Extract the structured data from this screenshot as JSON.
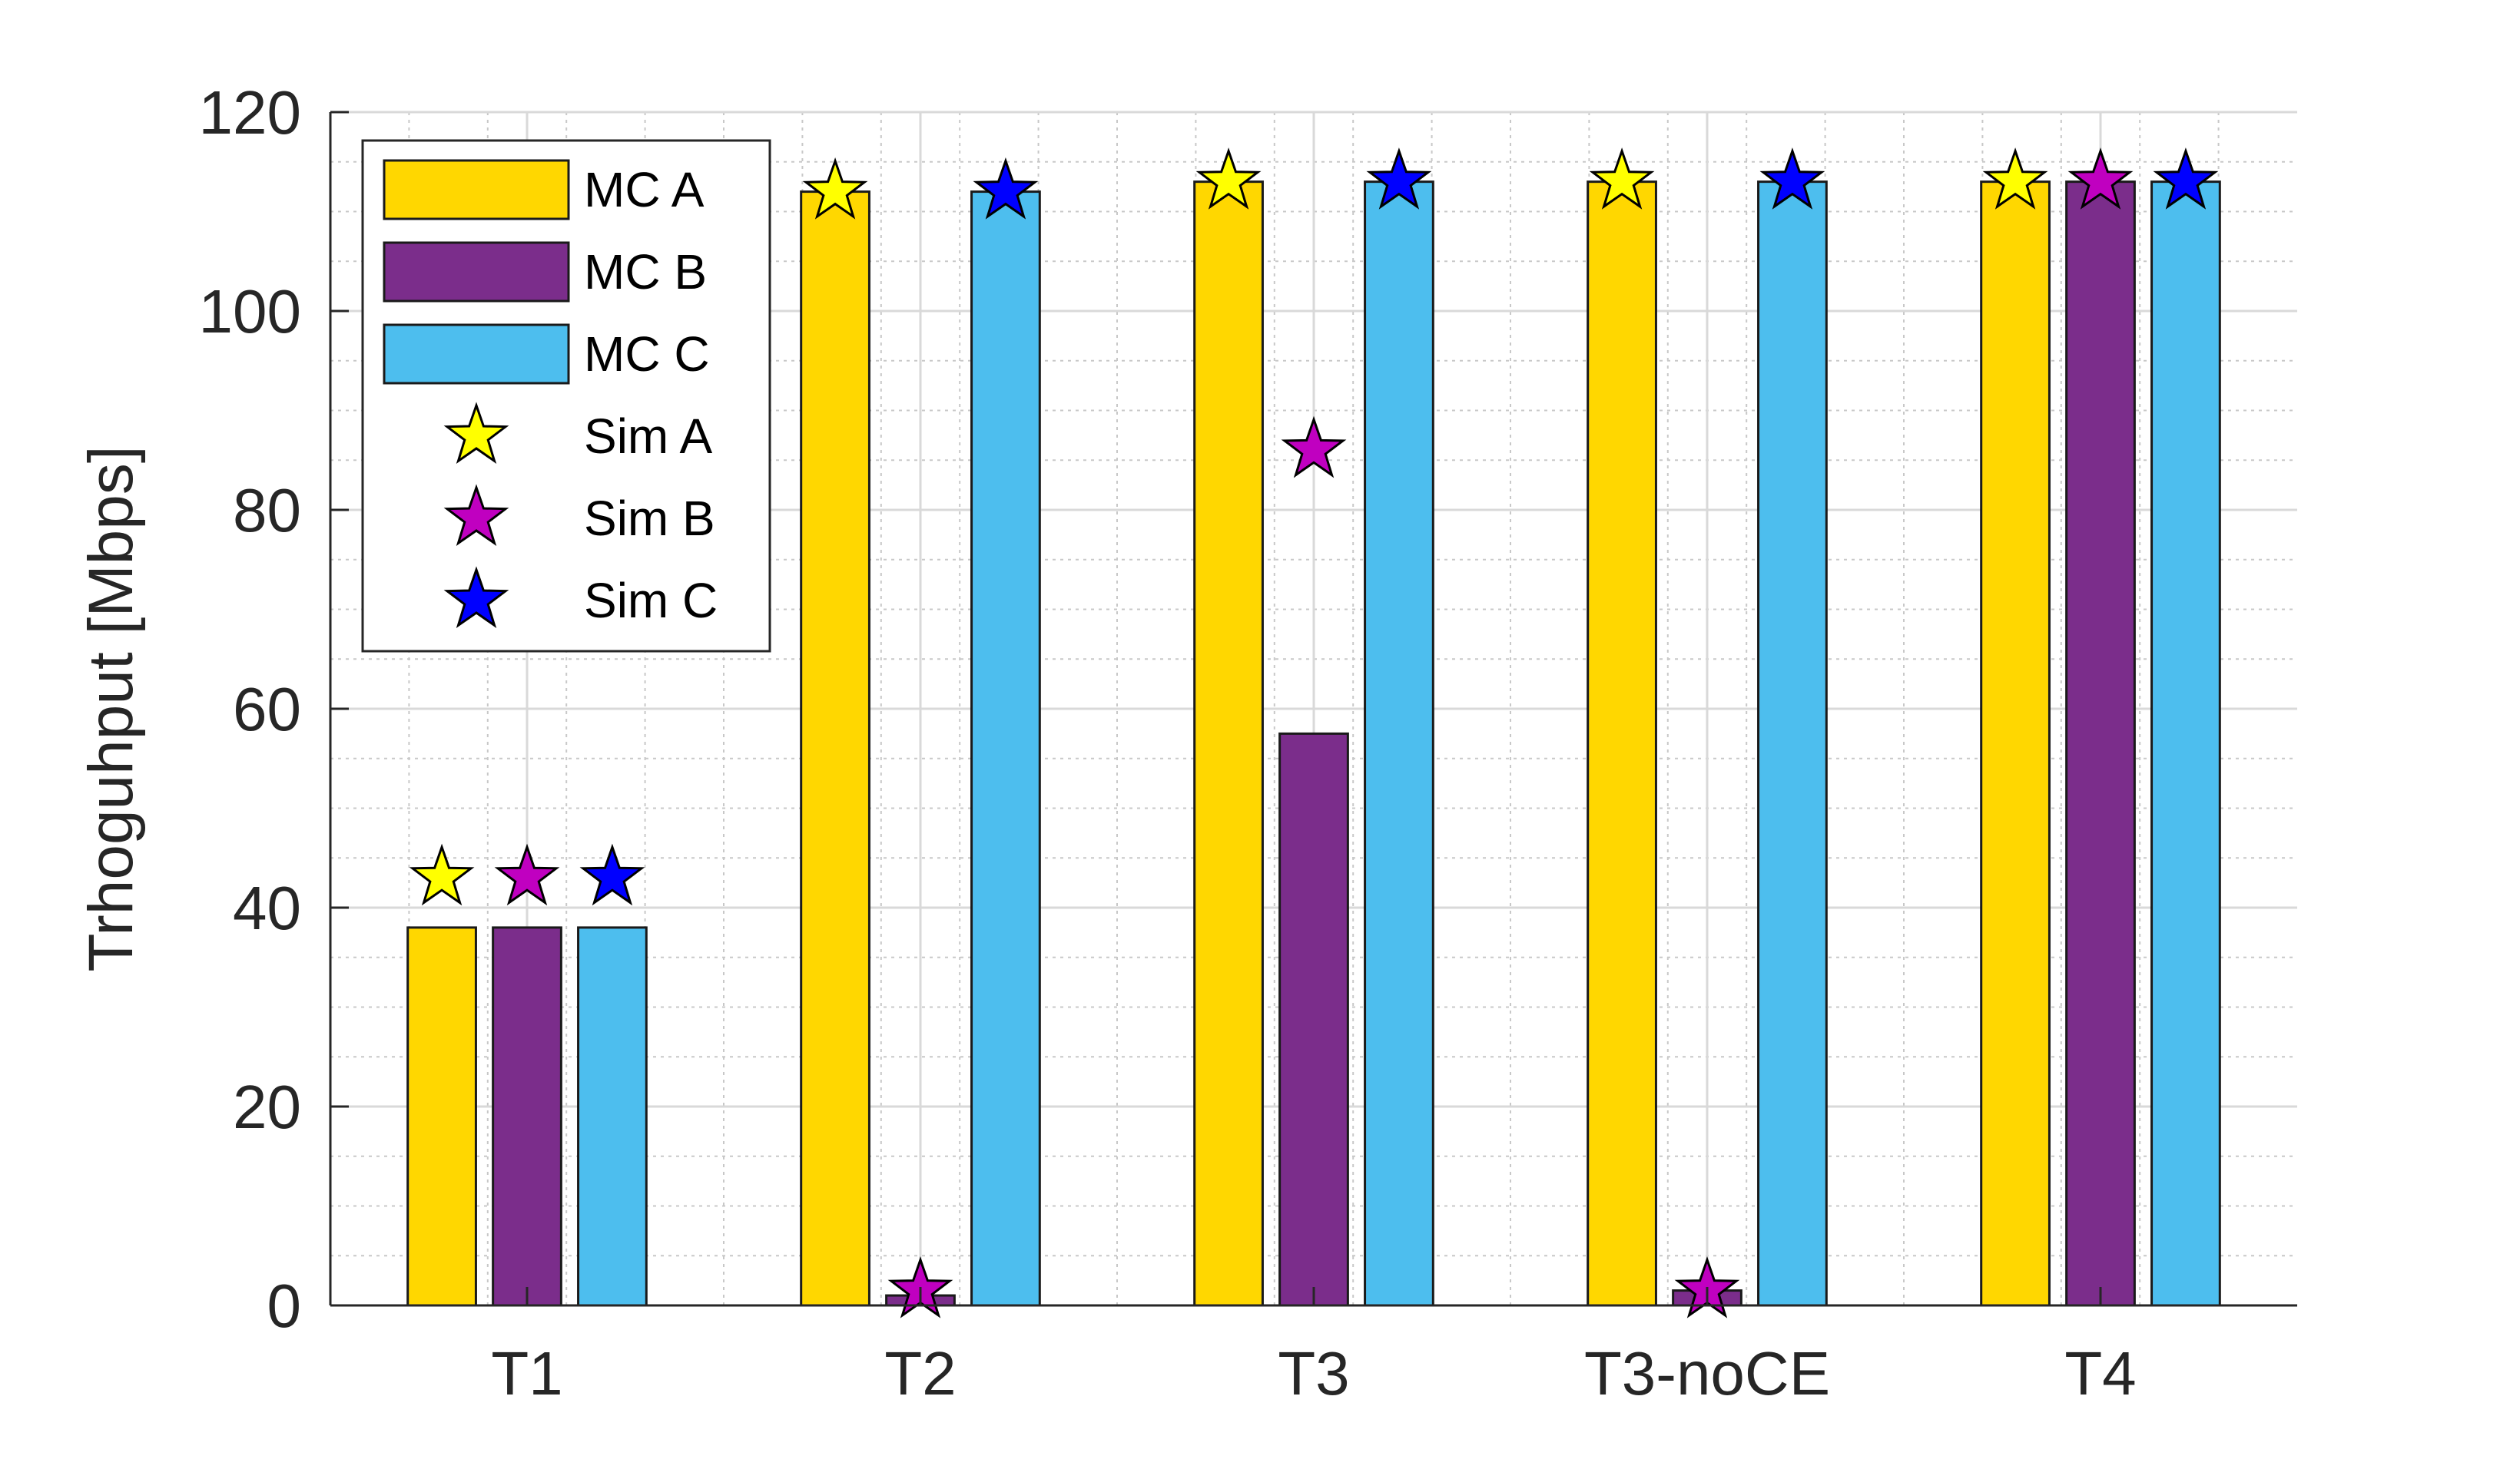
{
  "chart_data": {
    "type": "bar",
    "categories": [
      "T1",
      "T2",
      "T3",
      "T3-noCE",
      "T4"
    ],
    "ylabel": "Trhoguhput [Mbps]",
    "xlabel": "",
    "ylim": [
      0,
      120
    ],
    "yticks": [
      0,
      20,
      40,
      60,
      80,
      100,
      120
    ],
    "grid": true,
    "minor_grid": true,
    "legend_position": "top-left",
    "bar_series": [
      {
        "name": "MC A",
        "color": "#FFD700",
        "values": [
          38,
          112,
          113,
          113,
          113
        ]
      },
      {
        "name": "MC B",
        "color": "#7B2D8B",
        "values": [
          38,
          1,
          57.5,
          1.5,
          113
        ]
      },
      {
        "name": "MC C",
        "color": "#4DBEEE",
        "values": [
          38,
          112,
          113,
          113,
          113
        ]
      }
    ],
    "marker_series": [
      {
        "name": "Sim A",
        "color": "#FFFF00",
        "marker": "star",
        "values": [
          43,
          112,
          113,
          113,
          113
        ]
      },
      {
        "name": "Sim B",
        "color": "#C000C0",
        "marker": "star",
        "values": [
          43,
          1.5,
          86,
          1.5,
          113
        ]
      },
      {
        "name": "Sim C",
        "color": "#0000FF",
        "marker": "star",
        "values": [
          43,
          112,
          113,
          113,
          113
        ]
      }
    ]
  }
}
